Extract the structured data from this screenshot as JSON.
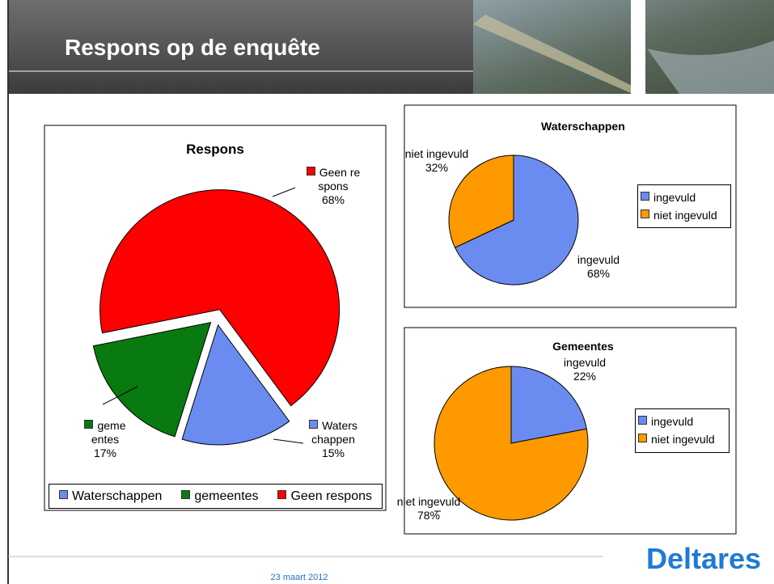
{
  "slide": {
    "title": "Respons op de enquête",
    "date": "23 maart 2012",
    "logo": "Deltares"
  },
  "chart_data": [
    {
      "type": "pie",
      "title": "Respons",
      "categories": [
        "Waterschappen",
        "gemeentes",
        "Geen respons"
      ],
      "values": [
        15,
        17,
        68
      ],
      "value_labels": [
        "15%",
        "17%",
        "68%"
      ],
      "colors": [
        "#6a8cf0",
        "#087a10",
        "#ff0000"
      ],
      "legend": "bottom"
    },
    {
      "type": "pie",
      "title": "Waterschappen",
      "categories": [
        "ingevuld",
        "niet ingevuld"
      ],
      "values": [
        68,
        32
      ],
      "value_labels": [
        "68%",
        "32%"
      ],
      "colors": [
        "#6a8cf0",
        "#ff9900"
      ],
      "legend": "right"
    },
    {
      "type": "pie",
      "title": "Gemeentes",
      "categories": [
        "ingevuld",
        "niet ingevuld"
      ],
      "values": [
        22,
        78
      ],
      "value_labels": [
        "22%",
        "78%"
      ],
      "colors": [
        "#6a8cf0",
        "#ff9900"
      ],
      "legend": "right"
    }
  ]
}
